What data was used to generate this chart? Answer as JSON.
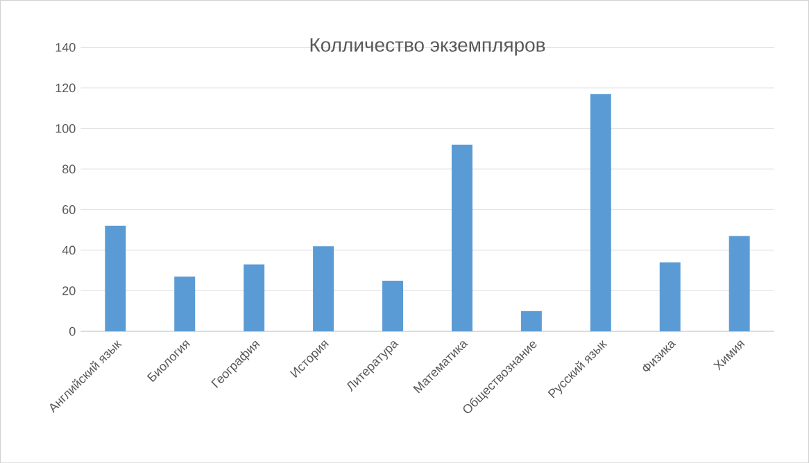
{
  "chart_data": {
    "type": "bar",
    "title": "Колличество экземпляров",
    "categories": [
      "Английский язык",
      "Биология",
      "География",
      "История",
      "Литература",
      "Математика",
      "Обществознание",
      "Русский язык",
      "Физика",
      "Химия"
    ],
    "values": [
      52,
      27,
      33,
      42,
      25,
      92,
      10,
      117,
      34,
      47
    ],
    "color": "#5b9bd5",
    "ylim": [
      0,
      140
    ],
    "yticks": [
      0,
      20,
      40,
      60,
      80,
      100,
      120,
      140
    ],
    "grid": "y"
  }
}
